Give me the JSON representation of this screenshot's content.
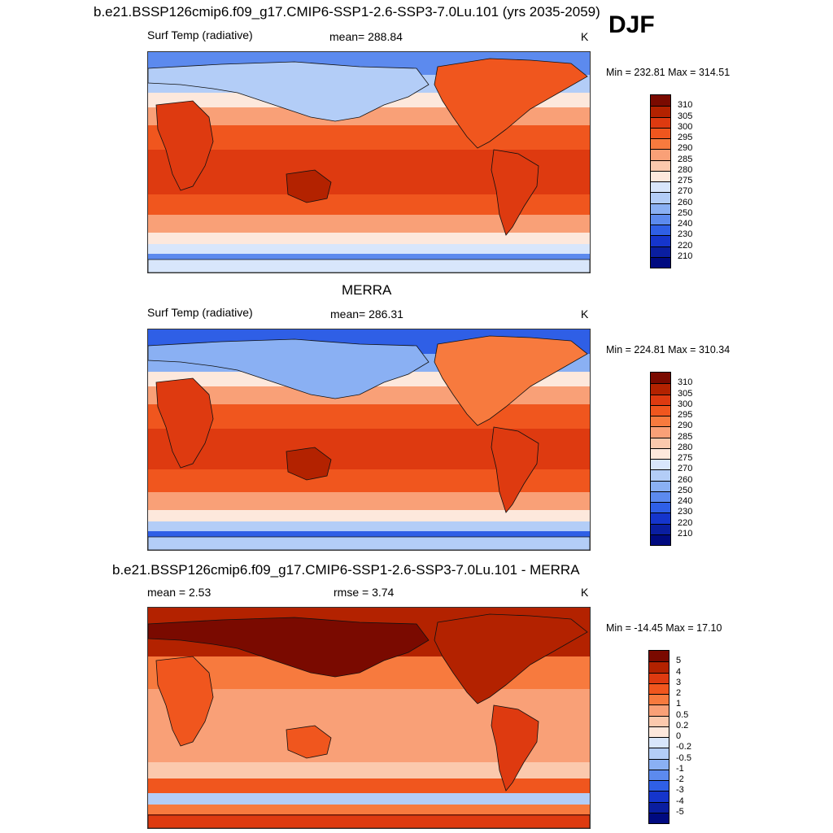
{
  "djf_label": "DJF",
  "panels": [
    {
      "title": "b.e21.BSSP126cmip6.f09_g17.CMIP6-SSP1-2.6-SSP3-7.0Lu.101 (yrs 2035-2059)",
      "left_label": "Surf Temp (radiative)",
      "center_label": "mean= 288.84",
      "units": "K",
      "minmax": "Min = 232.81 Max = 314.51"
    },
    {
      "title": "MERRA",
      "left_label": "Surf Temp (radiative)",
      "center_label": "mean= 286.31",
      "units": "K",
      "minmax": "Min = 224.81 Max = 310.34"
    },
    {
      "title": "b.e21.BSSP126cmip6.f09_g17.CMIP6-SSP1-2.6-SSP3-7.0Lu.101 - MERRA",
      "left_label": "mean =   2.53",
      "center_label": "rmse =   3.74",
      "units": "K",
      "minmax": "Min = -14.45 Max =  17.10"
    }
  ],
  "colors": {
    "abs_scale": [
      "#7a0a00",
      "#b32200",
      "#de3a10",
      "#f0561e",
      "#f77a3e",
      "#f9a077",
      "#fbc9ad",
      "#fde8dc",
      "#d8e6fb",
      "#b3cdf7",
      "#8ab0f3",
      "#5c8aee",
      "#2f5fe6",
      "#1535cc",
      "#0a1ea0",
      "#000a80"
    ],
    "diff_scale": [
      "#7a0a00",
      "#b32200",
      "#de3a10",
      "#f0561e",
      "#f77a3e",
      "#f9a077",
      "#fbc9ad",
      "#fde8dc",
      "#d8e6fb",
      "#b3cdf7",
      "#8ab0f3",
      "#5c8aee",
      "#2f5fe6",
      "#1535cc",
      "#0a1ea0",
      "#000a80"
    ]
  },
  "chart_data": [
    {
      "type": "heatmap",
      "title": "b.e21.BSSP126cmip6.f09_g17.CMIP6-SSP1-2.6-SSP3-7.0Lu.101 (yrs 2035-2059)",
      "variable": "Surf Temp (radiative)",
      "units": "K",
      "mean": 288.84,
      "min": 232.81,
      "max": 314.51,
      "colorbar_ticks": [
        "310",
        "305",
        "300",
        "295",
        "290",
        "285",
        "280",
        "275",
        "270",
        "260",
        "250",
        "240",
        "230",
        "220",
        "210"
      ]
    },
    {
      "type": "heatmap",
      "title": "MERRA",
      "variable": "Surf Temp (radiative)",
      "units": "K",
      "mean": 286.31,
      "min": 224.81,
      "max": 310.34,
      "colorbar_ticks": [
        "310",
        "305",
        "300",
        "295",
        "290",
        "285",
        "280",
        "275",
        "270",
        "260",
        "250",
        "240",
        "230",
        "220",
        "210"
      ]
    },
    {
      "type": "heatmap",
      "title": "b.e21.BSSP126cmip6.f09_g17.CMIP6-SSP1-2.6-SSP3-7.0Lu.101 - MERRA",
      "units": "K",
      "mean": 2.53,
      "rmse": 3.74,
      "min": -14.45,
      "max": 17.1,
      "colorbar_ticks": [
        "5",
        "4",
        "3",
        "2",
        "1",
        "0.5",
        "0.2",
        "0",
        "-0.2",
        "-0.5",
        "-1",
        "-2",
        "-3",
        "-4",
        "-5"
      ]
    }
  ]
}
